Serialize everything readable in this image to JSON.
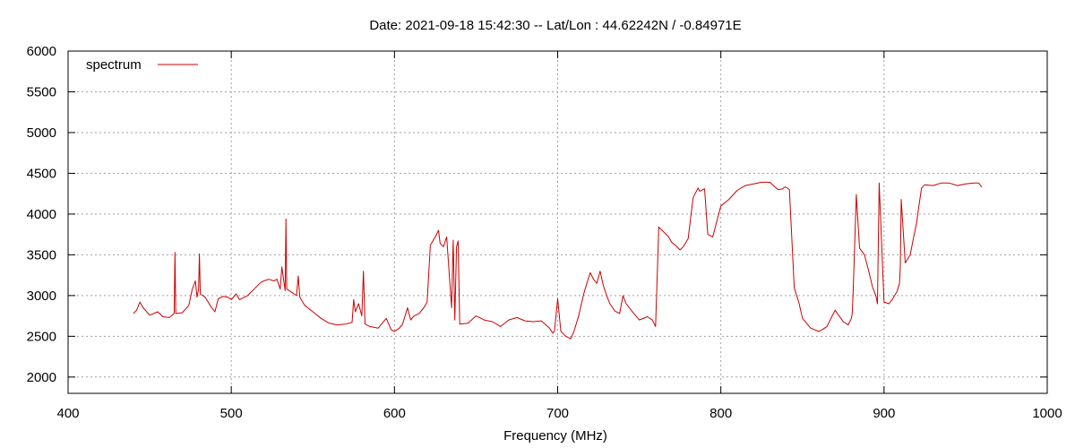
{
  "chart_data": {
    "type": "line",
    "title": "Date: 2021-09-18 15:42:30  --  Lat/Lon : 44.62242N / -0.84971E",
    "xlabel": "Frequency (MHz)",
    "ylabel": "",
    "xlim": [
      400,
      1000
    ],
    "ylim": [
      1800,
      6000
    ],
    "xticks": [
      400,
      500,
      600,
      700,
      800,
      900,
      1000
    ],
    "yticks": [
      2000,
      2500,
      3000,
      3500,
      4000,
      4500,
      5000,
      5500,
      6000
    ],
    "grid": true,
    "legend_position": "top-left",
    "series": [
      {
        "name": "spectrum",
        "color": "#cc0000",
        "x": [
          440,
          442,
          444,
          446,
          450,
          455,
          458,
          462,
          465,
          465.5,
          466,
          470,
          474,
          476,
          478,
          479,
          480,
          480.5,
          481,
          484,
          487,
          490,
          492,
          495,
          498,
          500,
          503,
          505,
          510,
          515,
          518,
          520,
          523,
          526,
          528,
          530,
          531,
          533,
          533.5,
          534,
          537,
          540,
          541,
          542,
          545,
          550,
          555,
          560,
          565,
          570,
          574,
          575,
          576,
          578,
          580,
          581,
          582,
          585,
          590,
          595,
          598,
          600,
          603,
          605,
          608,
          610,
          612,
          615,
          618,
          620,
          622,
          625,
          627,
          628,
          630,
          632,
          635,
          636,
          637,
          638,
          639,
          640,
          645,
          650,
          655,
          660,
          665,
          670,
          675,
          680,
          685,
          690,
          695,
          697,
          698,
          700,
          702,
          705,
          708,
          710,
          713,
          716,
          718,
          720,
          722,
          724,
          726,
          728,
          730,
          732,
          735,
          738,
          740,
          742,
          745,
          750,
          755,
          758,
          759.5,
          760,
          762,
          765,
          768,
          770,
          772,
          775,
          777,
          780,
          783,
          786,
          787,
          790,
          792,
          795,
          800,
          805,
          810,
          815,
          820,
          825,
          830,
          835,
          838,
          839,
          840,
          842,
          845,
          848,
          850,
          855,
          860,
          862,
          865,
          870,
          875,
          878,
          880,
          880.5,
          881,
          883,
          885,
          888,
          890,
          893,
          895,
          895.5,
          896,
          897,
          900,
          903,
          905,
          908,
          909.5,
          910,
          910.5,
          913,
          916,
          918,
          920,
          921,
          923,
          925,
          930,
          935,
          940,
          945,
          950,
          955,
          958,
          960
        ],
        "values": [
          2780,
          2820,
          2920,
          2850,
          2760,
          2800,
          2740,
          2730,
          2780,
          3530,
          2780,
          2790,
          2880,
          3070,
          3180,
          2980,
          3080,
          3510,
          3020,
          2980,
          2880,
          2800,
          2960,
          2990,
          2980,
          2950,
          3020,
          2950,
          3000,
          3100,
          3160,
          3180,
          3200,
          3180,
          3200,
          3080,
          3350,
          3060,
          3940,
          3080,
          3040,
          3000,
          3240,
          2980,
          2880,
          2800,
          2720,
          2660,
          2640,
          2650,
          2670,
          2950,
          2800,
          2900,
          2750,
          3300,
          2650,
          2620,
          2600,
          2720,
          2580,
          2560,
          2600,
          2650,
          2850,
          2700,
          2750,
          2780,
          2850,
          2920,
          3620,
          3720,
          3800,
          3640,
          3600,
          3720,
          2850,
          3680,
          2700,
          3600,
          3670,
          2650,
          2660,
          2750,
          2700,
          2680,
          2620,
          2700,
          2730,
          2690,
          2680,
          2690,
          2600,
          2540,
          2560,
          2960,
          2560,
          2500,
          2470,
          2560,
          2760,
          3020,
          3160,
          3280,
          3200,
          3150,
          3300,
          3120,
          3000,
          2900,
          2810,
          2780,
          3000,
          2900,
          2820,
          2700,
          2740,
          2700,
          2640,
          2620,
          3840,
          3780,
          3720,
          3650,
          3620,
          3560,
          3600,
          3700,
          4200,
          4320,
          4280,
          4310,
          3750,
          3720,
          4100,
          4180,
          4290,
          4350,
          4370,
          4390,
          4390,
          4300,
          4310,
          4330,
          4330,
          4300,
          3100,
          2900,
          2720,
          2600,
          2560,
          2580,
          2620,
          2820,
          2680,
          2640,
          2720,
          2780,
          3000,
          4240,
          3580,
          3500,
          3350,
          3100,
          3000,
          2950,
          2900,
          4380,
          2920,
          2900,
          2950,
          3050,
          3150,
          3350,
          4180,
          3400,
          3500,
          3700,
          3900,
          4050,
          4320,
          4360,
          4350,
          4380,
          4380,
          4350,
          4370,
          4380,
          4380,
          4330
        ]
      }
    ]
  }
}
